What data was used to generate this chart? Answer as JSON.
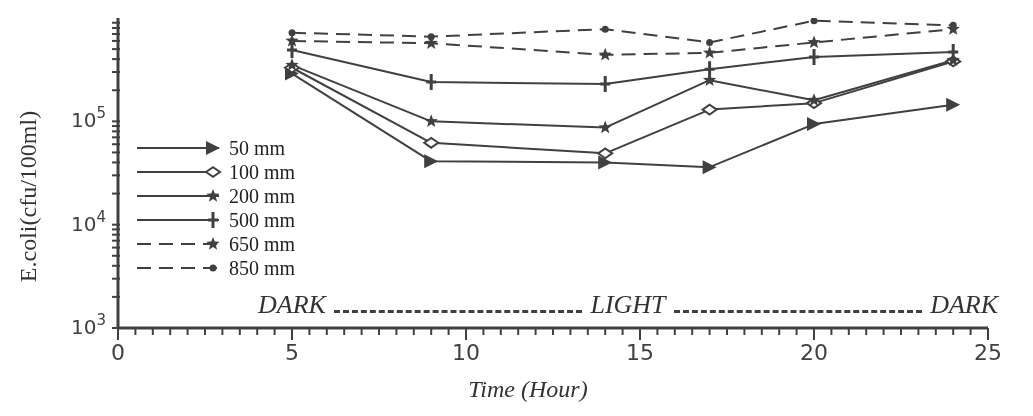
{
  "chart_data": {
    "type": "line",
    "xlabel": "Time (Hour)",
    "ylabel": "E.coli(cfu/100ml)",
    "log": "y",
    "x": [
      5,
      9,
      14,
      17,
      20,
      24
    ],
    "xlim": [
      0,
      25
    ],
    "xticks": [
      0,
      {
        "value": 0.5,
        "label": null
      },
      {
        "value": 1,
        "label": null
      },
      {
        "value": 1.5,
        "label": null
      },
      {
        "value": 2,
        "label": null
      },
      {
        "value": 2.5,
        "label": null
      },
      {
        "value": 3,
        "label": null
      },
      {
        "value": 3.5,
        "label": null
      },
      {
        "value": 4,
        "label": null
      },
      {
        "value": 4.5,
        "label": null
      },
      5,
      {
        "value": 5.5,
        "label": null
      },
      {
        "value": 6,
        "label": null
      },
      {
        "value": 6.5,
        "label": null
      },
      {
        "value": 7,
        "label": null
      },
      {
        "value": 7.5,
        "label": null
      },
      {
        "value": 8,
        "label": null
      },
      {
        "value": 8.5,
        "label": null
      },
      {
        "value": 9,
        "label": null
      },
      {
        "value": 9.5,
        "label": null
      },
      10,
      {
        "value": 10.5,
        "label": null
      },
      {
        "value": 11,
        "label": null
      },
      {
        "value": 11.5,
        "label": null
      },
      {
        "value": 12,
        "label": null
      },
      {
        "value": 12.5,
        "label": null
      },
      {
        "value": 13,
        "label": null
      },
      {
        "value": 13.5,
        "label": null
      },
      {
        "value": 14,
        "label": null
      },
      {
        "value": 14.5,
        "label": null
      },
      15,
      {
        "value": 15.5,
        "label": null
      },
      {
        "value": 16,
        "label": null
      },
      {
        "value": 16.5,
        "label": null
      },
      {
        "value": 17,
        "label": null
      },
      {
        "value": 17.5,
        "label": null
      },
      {
        "value": 18,
        "label": null
      },
      {
        "value": 18.5,
        "label": null
      },
      {
        "value": 19,
        "label": null
      },
      {
        "value": 19.5,
        "label": null
      },
      20,
      {
        "value": 20.5,
        "label": null
      },
      {
        "value": 21,
        "label": null
      },
      {
        "value": 21.5,
        "label": null
      },
      {
        "value": 22,
        "label": null
      },
      {
        "value": 22.5,
        "label": null
      },
      {
        "value": 23,
        "label": null
      },
      {
        "value": 23.5,
        "label": null
      },
      {
        "value": 24,
        "label": null
      },
      {
        "value": 24.5,
        "label": null
      },
      25
    ],
    "ylim": [
      1000,
      1000000
    ],
    "yticks": [
      {
        "value": 1000,
        "label": "10$^{3}$"
      },
      {
        "value": 2000,
        "label": null
      },
      {
        "value": 3000,
        "label": null
      },
      {
        "value": 4000,
        "label": null
      },
      {
        "value": 5000,
        "label": null
      },
      {
        "value": 6000,
        "label": null
      },
      {
        "value": 7000,
        "label": null
      },
      {
        "value": 8000,
        "label": null
      },
      {
        "value": 9000,
        "label": null
      },
      {
        "value": 10000,
        "label": "10$^{4}$"
      },
      {
        "value": 20000,
        "label": null
      },
      {
        "value": 30000,
        "label": null
      },
      {
        "value": 40000,
        "label": null
      },
      {
        "value": 50000,
        "label": null
      },
      {
        "value": 60000,
        "label": null
      },
      {
        "value": 70000,
        "label": null
      },
      {
        "value": 80000,
        "label": null
      },
      {
        "value": 90000,
        "label": null
      },
      {
        "value": 100000,
        "label": "10$^{5}$"
      },
      {
        "value": 200000,
        "label": null
      },
      {
        "value": 300000,
        "label": null
      },
      {
        "value": 400000,
        "label": null
      },
      {
        "value": 500000,
        "label": null
      },
      {
        "value": 600000,
        "label": null
      },
      {
        "value": 700000,
        "label": null
      },
      {
        "value": 800000,
        "label": null
      },
      {
        "value": 900000,
        "label": null
      }
    ],
    "grid": false,
    "legend": "left",
    "annotations": [
      "DARK",
      "LIGHT",
      "DARK"
    ],
    "series": [
      {
        "name": "50 mm",
        "color": "#404040",
        "marker": "triangle",
        "line_style": "solid",
        "values": [
          290000,
          41000,
          40000,
          36000,
          94000,
          145000
        ]
      },
      {
        "name": "100 mm",
        "color": "#404040",
        "marker": "diamond",
        "line_style": "solid",
        "values": [
          330000,
          62000,
          49000,
          130000,
          150000,
          380000
        ]
      },
      {
        "name": "200 mm",
        "color": "#404040",
        "marker": "star",
        "line_style": "solid",
        "values": [
          350000,
          100000,
          87000,
          250000,
          160000,
          390000
        ]
      },
      {
        "name": "500 mm",
        "color": "#404040",
        "marker": "cross",
        "line_style": "solid",
        "values": [
          490000,
          240000,
          230000,
          320000,
          420000,
          470000
        ]
      },
      {
        "name": "650 mm",
        "color": "#404040",
        "marker": "star",
        "line_style": "dashed",
        "values": [
          600000,
          570000,
          440000,
          460000,
          580000,
          780000
        ]
      },
      {
        "name": "850 mm",
        "color": "#404040",
        "marker": "circle",
        "line_style": "dashed",
        "values": [
          720000,
          660000,
          780000,
          580000,
          940000,
          850000
        ]
      }
    ]
  }
}
